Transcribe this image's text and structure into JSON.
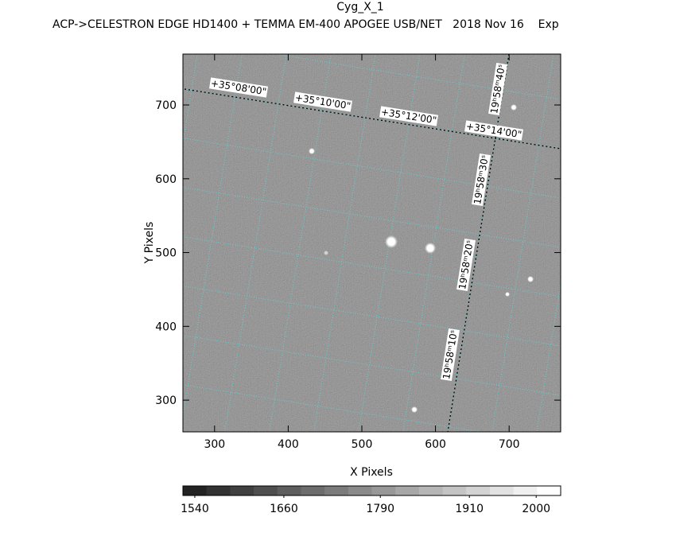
{
  "chart_data": {
    "type": "image",
    "title": "Cyg_X_1",
    "subtitle": "ACP->CELESTRON EDGE HD1400 + TEMMA EM-400 APOGEE USB/NET   2018 Nov 16    Exp",
    "x_label": "X Pixels",
    "y_label": "Y Pixels",
    "xlim": [
      257,
      770
    ],
    "ylim": [
      257,
      769
    ],
    "xticks": [
      300,
      400,
      500,
      600,
      700
    ],
    "yticks": [
      300,
      400,
      500,
      600,
      700
    ],
    "dec_labels": [
      "+35°08'00\"",
      "+35°10'00\"",
      "+35°12'00\"",
      "+35°14'00\""
    ],
    "ra_labels": [
      "19ʰ58ᵐ40ˢ",
      "19ʰ58ᵐ30ˢ",
      "19ʰ58ᵐ20ˢ",
      "19ʰ58ᵐ10ˢ"
    ],
    "colorbar": {
      "clim": [
        1524,
        2033
      ],
      "ticks": [
        1540,
        1660,
        1790,
        1910,
        2000
      ]
    }
  }
}
